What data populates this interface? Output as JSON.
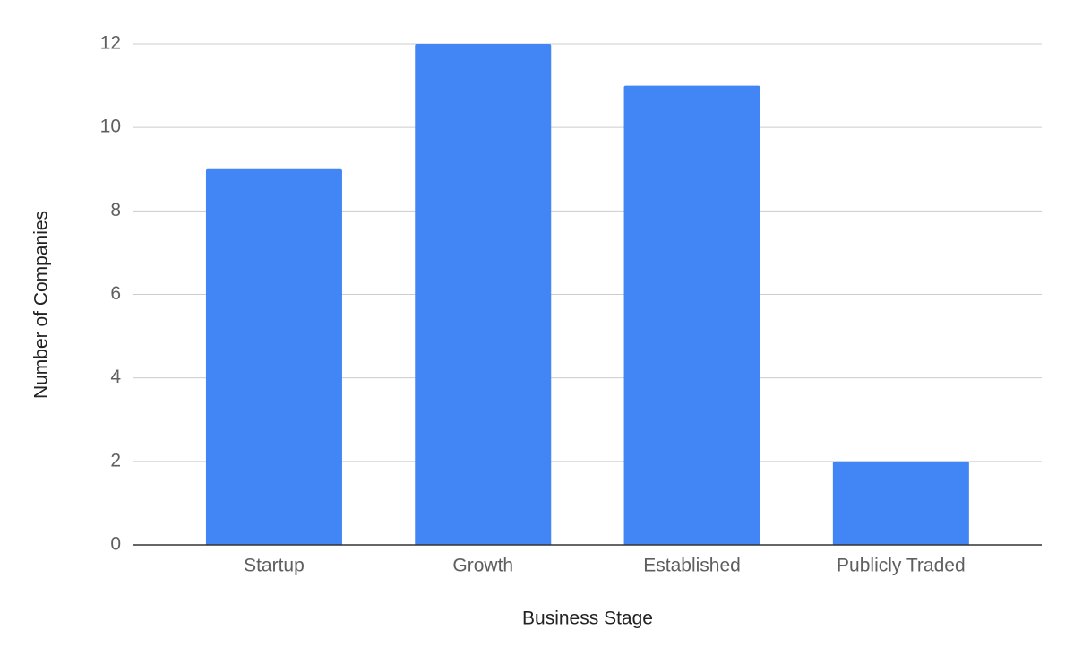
{
  "chart_data": {
    "type": "bar",
    "categories": [
      "Startup",
      "Growth",
      "Established",
      "Publicly Traded"
    ],
    "values": [
      9,
      12,
      11,
      2
    ],
    "color": "#4285f4",
    "x_label": "Business Stage",
    "y_label": "Number of Companies",
    "ylim": [
      0,
      12
    ],
    "yticks": [
      0,
      2,
      4,
      6,
      8,
      10,
      12
    ],
    "grid": true
  }
}
